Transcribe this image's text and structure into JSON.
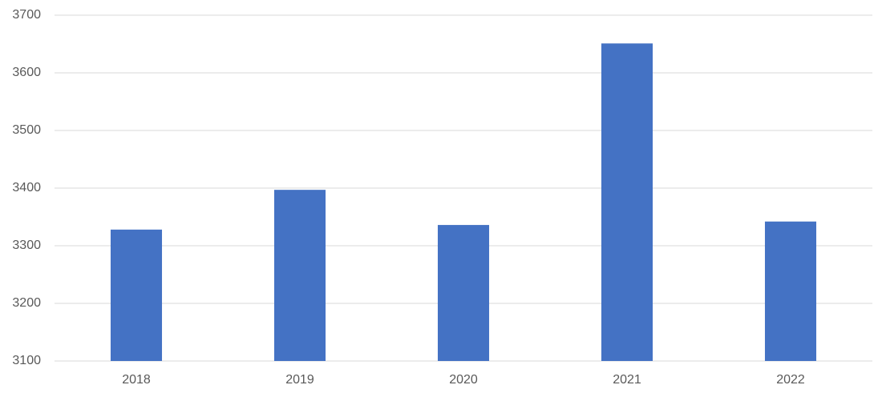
{
  "chart_data": {
    "type": "bar",
    "categories": [
      "2018",
      "2019",
      "2020",
      "2021",
      "2022"
    ],
    "values": [
      3328,
      3397,
      3336,
      3651,
      3342
    ],
    "color": "#4472c4",
    "ylim": [
      3100,
      3700
    ],
    "yticks": [
      3100,
      3200,
      3300,
      3400,
      3500,
      3600,
      3700
    ],
    "grid": true
  }
}
